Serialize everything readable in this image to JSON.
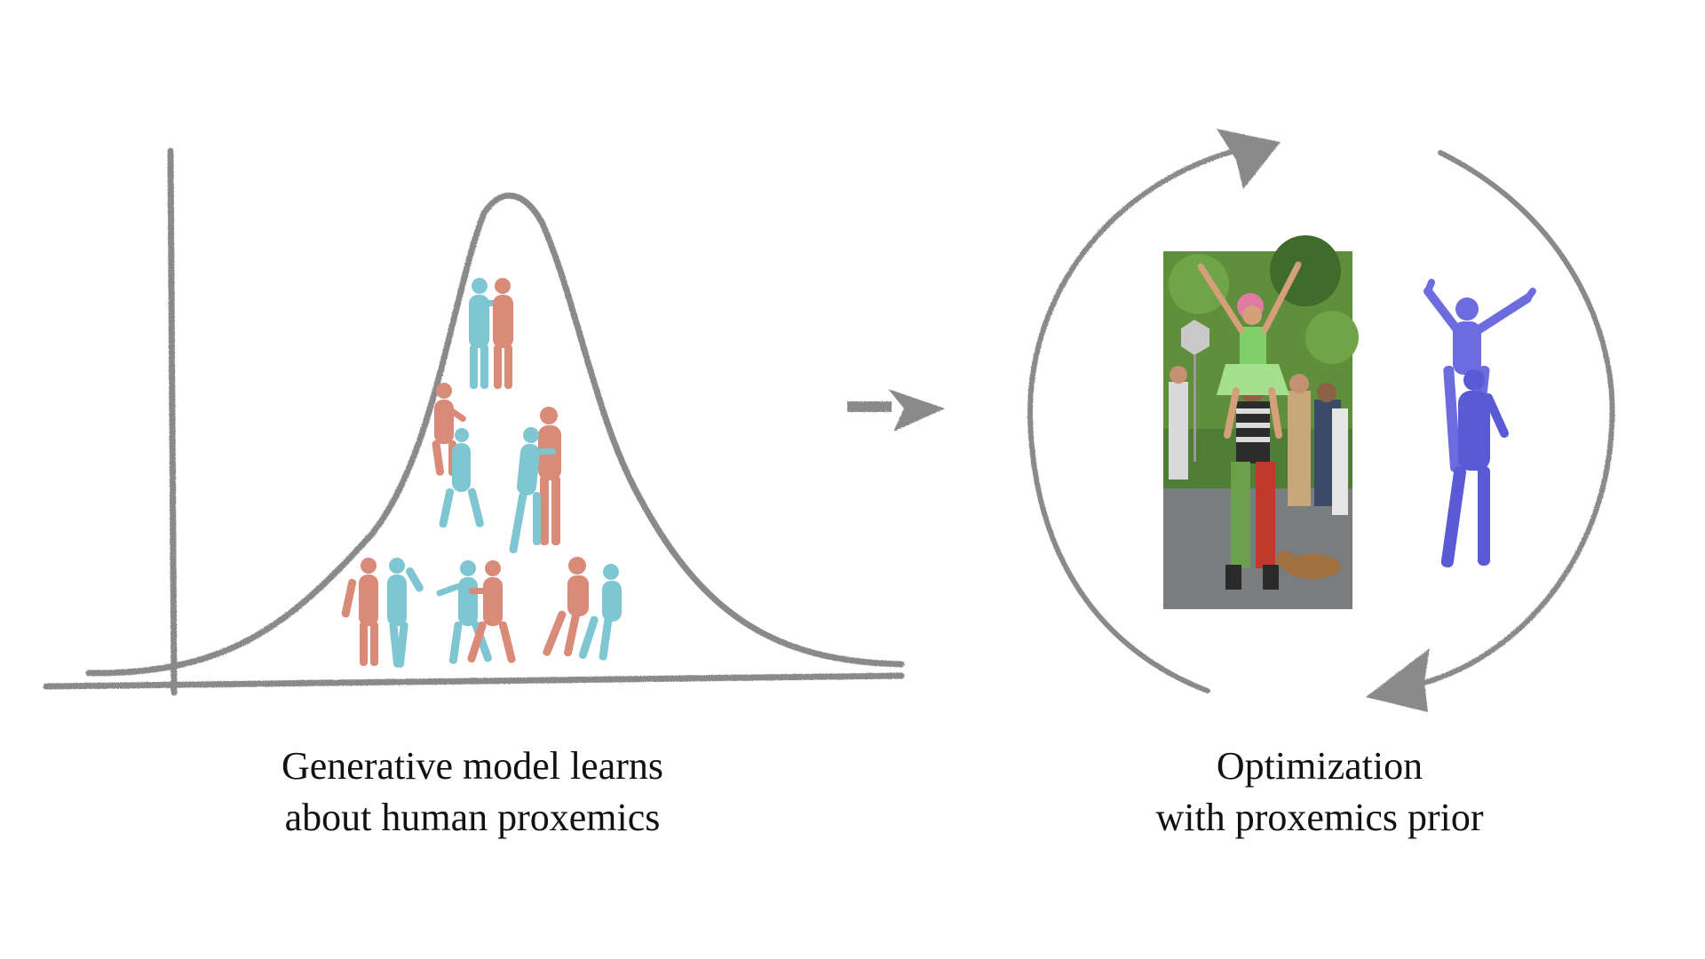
{
  "captions": {
    "left_line1": "Generative model learns",
    "left_line2": "about human proxemics",
    "right_line1": "Optimization",
    "right_line2": "with proxemics prior"
  },
  "colors": {
    "stroke": "#8a8a8a",
    "person_a": "#d98a78",
    "person_b": "#7fc6d3",
    "fitted_mesh": "#6c6cde",
    "photo_foliage": "#5f8f3a",
    "photo_road": "#7a7d80"
  },
  "icons": {
    "arrow": "right-arrow-icon",
    "cycle": "cycle-arrows-icon"
  }
}
